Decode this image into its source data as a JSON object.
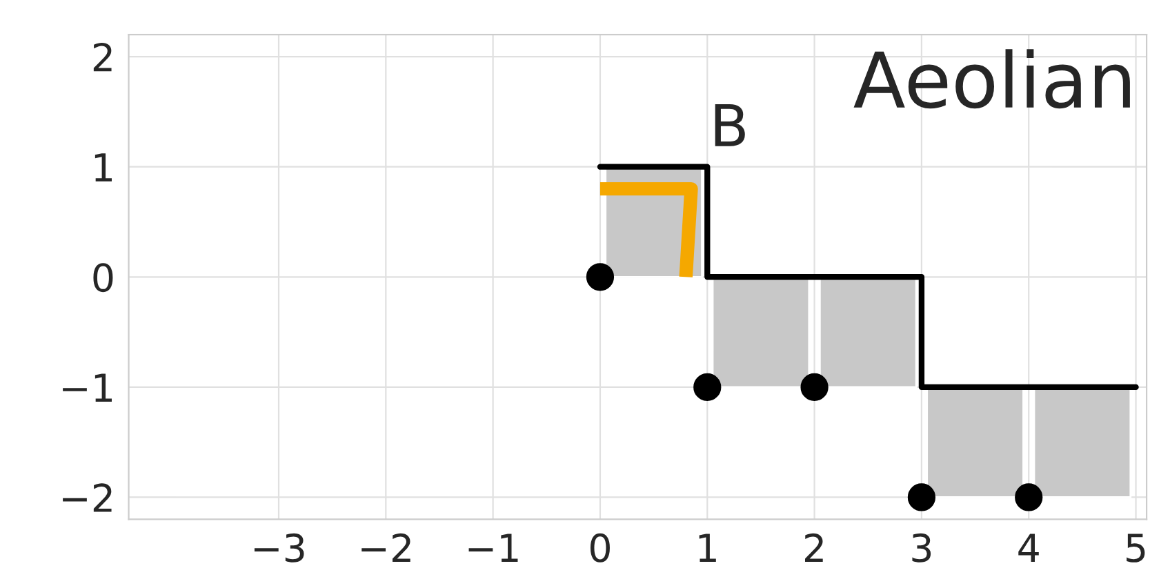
{
  "chart_data": {
    "type": "bar",
    "annotations": [
      "Aeolian",
      "B"
    ],
    "xlim": [
      -4.4,
      5.1
    ],
    "ylim": [
      -2.2,
      2.2
    ],
    "xticks": [
      {
        "value": -3,
        "label": "−3"
      },
      {
        "value": -2,
        "label": "−2"
      },
      {
        "value": -1,
        "label": "−1"
      },
      0,
      1,
      2,
      3,
      4,
      5
    ],
    "yticks": [
      {
        "value": -2,
        "label": "−2"
      },
      {
        "value": -1,
        "label": "−1"
      },
      0,
      1,
      2
    ],
    "grid": true,
    "legend": false,
    "series": [
      {
        "color": "#c8c8c8",
        "x": [
          0.5,
          1.5,
          2.5,
          3.5,
          4.5
        ],
        "base": [
          0,
          -1,
          -1,
          -2,
          -2
        ],
        "values": [
          1,
          1,
          1,
          1,
          1
        ]
      },
      {
        "type": "line",
        "color": "#f5a800",
        "x": [
          0,
          0.85,
          0.8
        ],
        "values": [
          0.8,
          0.8,
          0
        ]
      },
      {
        "type": "step",
        "color": "#000000",
        "x": [
          0,
          1,
          3,
          5
        ],
        "values": [
          1,
          0,
          -1,
          -1
        ]
      },
      {
        "type": "scatter",
        "color": "#000000",
        "marker": "circle",
        "x": [
          0,
          1,
          2,
          3,
          4
        ],
        "values": [
          0,
          -1,
          -1,
          -2,
          -2
        ]
      }
    ]
  }
}
